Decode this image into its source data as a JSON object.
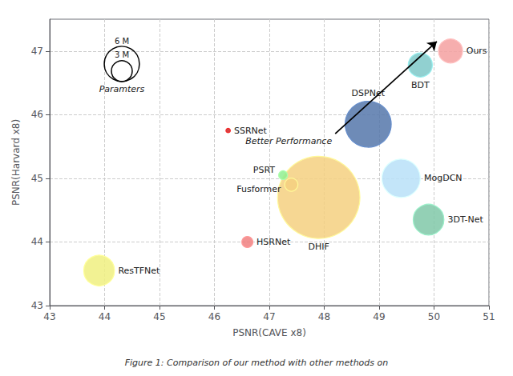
{
  "chart_data": {
    "type": "bubble",
    "caption": "Figure 1: Comparison of our method with other methods on",
    "xlabel": "PSNR(CAVE x8)",
    "ylabel": "PSNR(Harvard x8)",
    "point_labels": [
      "Ours",
      "BDT",
      "DSPNet",
      "MogDCN",
      "3DT-Net",
      "DHIF",
      "PSRT",
      "Fusformer",
      "SSRNet",
      "HSRNet",
      "ResTFNet"
    ],
    "x": [
      50.3,
      49.75,
      48.8,
      49.4,
      49.9,
      47.9,
      47.25,
      47.4,
      46.25,
      46.6,
      43.9
    ],
    "values": [
      47.0,
      46.78,
      45.85,
      45.0,
      44.35,
      44.7,
      45.05,
      44.9,
      45.75,
      44.0,
      43.55
    ],
    "sizes": [
      0.22,
      0.22,
      0.42,
      0.35,
      0.28,
      0.75,
      0.08,
      0.12,
      0.04,
      0.1,
      0.28
    ],
    "colors": [
      "#f4a0a0",
      "#7ec8c8",
      "#5577aa",
      "#b8e0f8",
      "#80c8a8",
      "#f5d080",
      "#90ee90",
      "#f5d080",
      "#cc2222",
      "#f08080",
      "#f0f080"
    ],
    "size_legend": {
      "title": "Paramters",
      "items": [
        {
          "label": "6 M",
          "size": 0.32
        },
        {
          "label": "3 M",
          "size": 0.19
        }
      ]
    },
    "annotation": {
      "text": "Better Performance",
      "from": [
        48.2,
        45.7
      ],
      "to": [
        50.05,
        47.15
      ]
    },
    "xlim": [
      43,
      51
    ],
    "ylim": [
      43,
      47.5
    ],
    "xticks": [
      43,
      44,
      45,
      46,
      47,
      48,
      49,
      50,
      51
    ],
    "yticks": [
      43,
      44,
      45,
      46,
      47
    ],
    "grid": true
  }
}
